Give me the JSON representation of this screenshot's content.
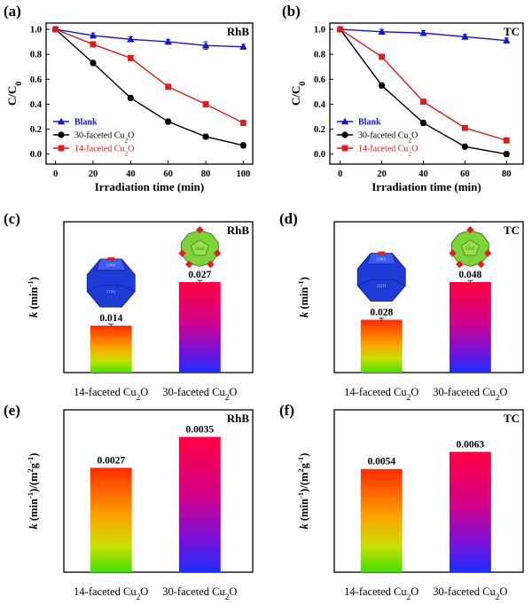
{
  "colors": {
    "blank": "#1414d2",
    "faceted30": "#000000",
    "faceted14": "#e01b1b",
    "errorbar": "#333333",
    "bar14_top": "#ff2a00",
    "bar14_bottom": "#44e000",
    "bar30_top": "#ff0040",
    "bar30_bottom": "#1e2dff",
    "crystal14": "#1f3bd6",
    "crystal30": "#7ed33a",
    "crystal_vertex": "#e02020"
  },
  "chart_data": [
    {
      "id": "a",
      "type": "line",
      "panel_label": "(a)",
      "corner_label": "RhB",
      "xlabel": "Irradiation time (min)",
      "ylabel_main": "C/C",
      "ylabel_sub": "0",
      "xlim": [
        -5,
        105
      ],
      "ylim": [
        -0.08,
        1.05
      ],
      "xticks": [
        0,
        20,
        40,
        60,
        80,
        100
      ],
      "xtick_labels": [
        "0",
        "20",
        "40",
        "60",
        "80",
        "100"
      ],
      "yticks": [
        0.0,
        0.2,
        0.4,
        0.6,
        0.8,
        1.0
      ],
      "ytick_labels": [
        "0.0",
        "0.2",
        "0.4",
        "0.6",
        "0.8",
        "1.0"
      ],
      "x": [
        0,
        20,
        40,
        60,
        80,
        100
      ],
      "series": [
        {
          "name": "Blank",
          "marker": "triangle",
          "color_key": "blank",
          "values": [
            1.0,
            0.95,
            0.92,
            0.9,
            0.87,
            0.86
          ],
          "errors": [
            0.02,
            0.02,
            0.02,
            0.02,
            0.03,
            0.02
          ]
        },
        {
          "name": "30-faceted Cu",
          "name_sub": "2",
          "name_tail": "O",
          "marker": "circle",
          "color_key": "faceted30",
          "values": [
            1.0,
            0.73,
            0.45,
            0.26,
            0.14,
            0.07
          ],
          "errors": [
            0.02,
            0.02,
            0.02,
            0.02,
            0.02,
            0.02
          ]
        },
        {
          "name": "14-faceted Cu",
          "name_sub": "2",
          "name_tail": "O",
          "marker": "square",
          "color_key": "faceted14",
          "values": [
            1.0,
            0.88,
            0.77,
            0.54,
            0.4,
            0.25
          ],
          "errors": [
            0.02,
            0.02,
            0.02,
            0.02,
            0.02,
            0.02
          ]
        }
      ]
    },
    {
      "id": "b",
      "type": "line",
      "panel_label": "(b)",
      "corner_label": "TC",
      "xlabel": "Irradiation time (min)",
      "ylabel_main": "C/C",
      "ylabel_sub": "0",
      "xlim": [
        -5,
        88
      ],
      "ylim": [
        -0.08,
        1.05
      ],
      "xticks": [
        0,
        20,
        40,
        60,
        80
      ],
      "xtick_labels": [
        "0",
        "20",
        "40",
        "60",
        "80"
      ],
      "yticks": [
        0.0,
        0.2,
        0.4,
        0.6,
        0.8,
        1.0
      ],
      "ytick_labels": [
        "0.0",
        "0.2",
        "0.4",
        "0.6",
        "0.8",
        "1.0"
      ],
      "x": [
        0,
        20,
        40,
        60,
        80
      ],
      "series": [
        {
          "name": "Blank",
          "marker": "triangle",
          "color_key": "blank",
          "values": [
            1.0,
            0.98,
            0.97,
            0.94,
            0.91
          ],
          "errors": [
            0.02,
            0.02,
            0.02,
            0.02,
            0.02
          ]
        },
        {
          "name": "30-faceted Cu",
          "name_sub": "2",
          "name_tail": "O",
          "marker": "circle",
          "color_key": "faceted30",
          "values": [
            1.0,
            0.55,
            0.25,
            0.06,
            0.0
          ],
          "errors": [
            0.02,
            0.02,
            0.02,
            0.02,
            0.02
          ]
        },
        {
          "name": "14-faceted Cu",
          "name_sub": "2",
          "name_tail": "O",
          "marker": "square",
          "color_key": "faceted14",
          "values": [
            1.0,
            0.78,
            0.42,
            0.21,
            0.11
          ],
          "errors": [
            0.02,
            0.02,
            0.02,
            0.02,
            0.02
          ]
        }
      ]
    },
    {
      "id": "c",
      "type": "bar",
      "panel_label": "(c)",
      "corner_label": "RhB",
      "ylabel_main": "k",
      "ylabel_rest": " (min",
      "ylabel_sup": "-1",
      "ylabel_end": ")",
      "ylim": [
        0,
        0.045
      ],
      "categories": [
        {
          "main": "14-faceted Cu",
          "sub": "2",
          "tail": "O"
        },
        {
          "main": "30-faceted Cu",
          "sub": "2",
          "tail": "O"
        }
      ],
      "values": [
        0.014,
        0.027
      ],
      "value_labels": [
        "0.014",
        "0.027"
      ],
      "errors": [
        0.0005,
        0.0005
      ],
      "facet_labels": [
        "[111]",
        "[100]",
        "[332]"
      ],
      "crystals": true
    },
    {
      "id": "d",
      "type": "bar",
      "panel_label": "(d)",
      "corner_label": "TC",
      "ylabel_main": "k",
      "ylabel_rest": " (min",
      "ylabel_sup": "-1",
      "ylabel_end": ")",
      "ylim": [
        0,
        0.08
      ],
      "categories": [
        {
          "main": "14-faceted Cu",
          "sub": "2",
          "tail": "O"
        },
        {
          "main": "30-faceted Cu",
          "sub": "2",
          "tail": "O"
        }
      ],
      "values": [
        0.028,
        0.048
      ],
      "value_labels": [
        "0.028",
        "0.048"
      ],
      "errors": [
        0.0008,
        0.0008
      ],
      "facet_labels": [
        "[111]",
        "[100]",
        "[332]"
      ],
      "crystals": true
    },
    {
      "id": "e",
      "type": "bar",
      "panel_label": "(e)",
      "corner_label": "RhB",
      "ylabel_main": "k",
      "ylabel_rest": " (min",
      "ylabel_sup": "-1",
      "ylabel_mid": ")/(m",
      "ylabel_sup2": "2",
      "ylabel_mid2": "g",
      "ylabel_sup3": "-1",
      "ylabel_end": ")",
      "ylim": [
        0,
        0.0042
      ],
      "categories": [
        {
          "main": "14-faceted Cu",
          "sub": "2",
          "tail": "O"
        },
        {
          "main": "30-faceted Cu",
          "sub": "2",
          "tail": "O"
        }
      ],
      "values": [
        0.0027,
        0.0035
      ],
      "value_labels": [
        "0.0027",
        "0.0035"
      ],
      "errors": [
        0,
        0
      ],
      "crystals": false
    },
    {
      "id": "f",
      "type": "bar",
      "panel_label": "(f)",
      "corner_label": "TC",
      "ylabel_main": "k",
      "ylabel_rest": " (min",
      "ylabel_sup": "-1",
      "ylabel_mid": ")/(m",
      "ylabel_sup2": "2",
      "ylabel_mid2": "g",
      "ylabel_sup3": "-1",
      "ylabel_end": ")",
      "ylim": [
        0,
        0.0085
      ],
      "categories": [
        {
          "main": "14-faceted Cu",
          "sub": "2",
          "tail": "O"
        },
        {
          "main": "30-faceted Cu",
          "sub": "2",
          "tail": "O"
        }
      ],
      "values": [
        0.0054,
        0.0063
      ],
      "value_labels": [
        "0.0054",
        "0.0063"
      ],
      "errors": [
        0,
        0
      ],
      "crystals": false
    }
  ]
}
